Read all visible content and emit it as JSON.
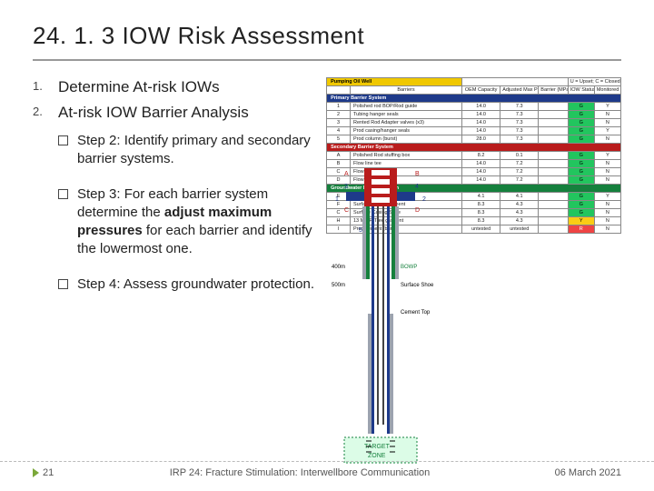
{
  "title": "24. 1. 3 IOW Risk Assessment",
  "list": {
    "item1": {
      "num": "1.",
      "text": "Determine At-risk IOWs"
    },
    "item2": {
      "num": "2.",
      "text": "At-risk IOW Barrier Analysis"
    }
  },
  "sub": {
    "s2": "Step 2: Identify primary and secondary barrier systems.",
    "s3_a": "Step 3: For each barrier system determine the ",
    "s3_b": "adjust maximum pressures",
    "s3_c": " for each barrier and identify the lowermost one.",
    "s4": "Step 4:  Assess groundwater protection."
  },
  "tableHeaders": {
    "c0": "",
    "c1": "Barriers",
    "c2": "OEM Capacity",
    "c3": "Adjusted Max Pressure (MPa)",
    "c4": "Barrier (MPa)",
    "c5": "IOW Status",
    "c6": "Monitored (Y)"
  },
  "hdr_yel": "Pumping Oil Well",
  "hdr_note": "U = Upset; C = Closed",
  "sections": {
    "primary": "Primary Barrier System",
    "secondary": "Secondary Barrier System",
    "ground": "Groundwater Barrier System"
  },
  "rows": {
    "p": [
      {
        "n": "1",
        "name": "Polished rod BOP/Rod guide",
        "v1": "14.0",
        "v2": "7.3",
        "status": "G",
        "mon": "Y"
      },
      {
        "n": "2",
        "name": "Tubing hanger seals",
        "v1": "14.0",
        "v2": "7.3",
        "status": "G",
        "mon": "N"
      },
      {
        "n": "3",
        "name": "Rented Rod Adapter valves (x3)",
        "v1": "14.0",
        "v2": "7.3",
        "status": "G",
        "mon": "N"
      },
      {
        "n": "4",
        "name": "Prod casing/hanger seals",
        "v1": "14.0",
        "v2": "7.3",
        "status": "G",
        "mon": "Y"
      },
      {
        "n": "5",
        "name": "Prod column (burst)",
        "v1": "28.0",
        "v2": "7.3",
        "status": "G",
        "mon": "N"
      }
    ],
    "s": [
      {
        "n": "A",
        "name": "Polished Rod stuffing box",
        "v1": "8.2",
        "v2": "0.1",
        "status": "G",
        "mon": "Y"
      },
      {
        "n": "B",
        "name": "Flow line tee",
        "v1": "14.0",
        "v2": "7.2",
        "status": "G",
        "mon": "N"
      },
      {
        "n": "C",
        "name": "Flow line tee",
        "v1": "14.0",
        "v2": "7.2",
        "status": "G",
        "mon": "N"
      },
      {
        "n": "D",
        "name": "Flow line valve",
        "v1": "14.0",
        "v2": "7.2",
        "status": "G",
        "mon": "N"
      }
    ],
    "g": [
      {
        "n": "E",
        "name": "Surface Casing",
        "v1": "4.1",
        "v2": "4.1",
        "status": "G",
        "mon": "Y"
      },
      {
        "n": "F",
        "name": "Surface Casing cement",
        "v1": "8.3",
        "v2": "4.3",
        "status": "G",
        "mon": "N"
      },
      {
        "n": "C",
        "name": "Surface Casing Shoe",
        "v1": "8.3",
        "v2": "4.3",
        "status": "G",
        "mon": "N"
      },
      {
        "n": "H",
        "name": "13 M/KP/Tree gradient",
        "v1": "8.3",
        "v2": "4.3",
        "status": "Y",
        "mon": "N"
      },
      {
        "n": "I",
        "name": "Prod cement (burst)",
        "v1": "untested",
        "v2": "untested",
        "status": "R",
        "mon": "N"
      }
    ]
  },
  "diagram": {
    "colors": {
      "casing": "#1e3a8a",
      "tubing": "#15803d",
      "wellhead": "#b91c1c",
      "cement": "#9ca3af",
      "zone_bg": "#dcfce7",
      "zone_border": "#15803d",
      "label_colors": {
        "blue": "#1e3a8a",
        "red": "#b91c1c",
        "green": "#15803d"
      }
    },
    "labels": {
      "top": [
        "A",
        "B",
        "1",
        "2",
        "3",
        "4",
        "C",
        "D"
      ],
      "depth1": "400m",
      "depth2": "500m",
      "bowp": "BOWP",
      "st": "Surface Shoe",
      "cap": "Cement Top",
      "zone1": "TARGET",
      "zone2": "ZONE"
    }
  },
  "footer": {
    "page": "21",
    "mid": "IRP 24: Fracture Stimulation: Interwellbore Communication",
    "date": "06 March 2021"
  }
}
